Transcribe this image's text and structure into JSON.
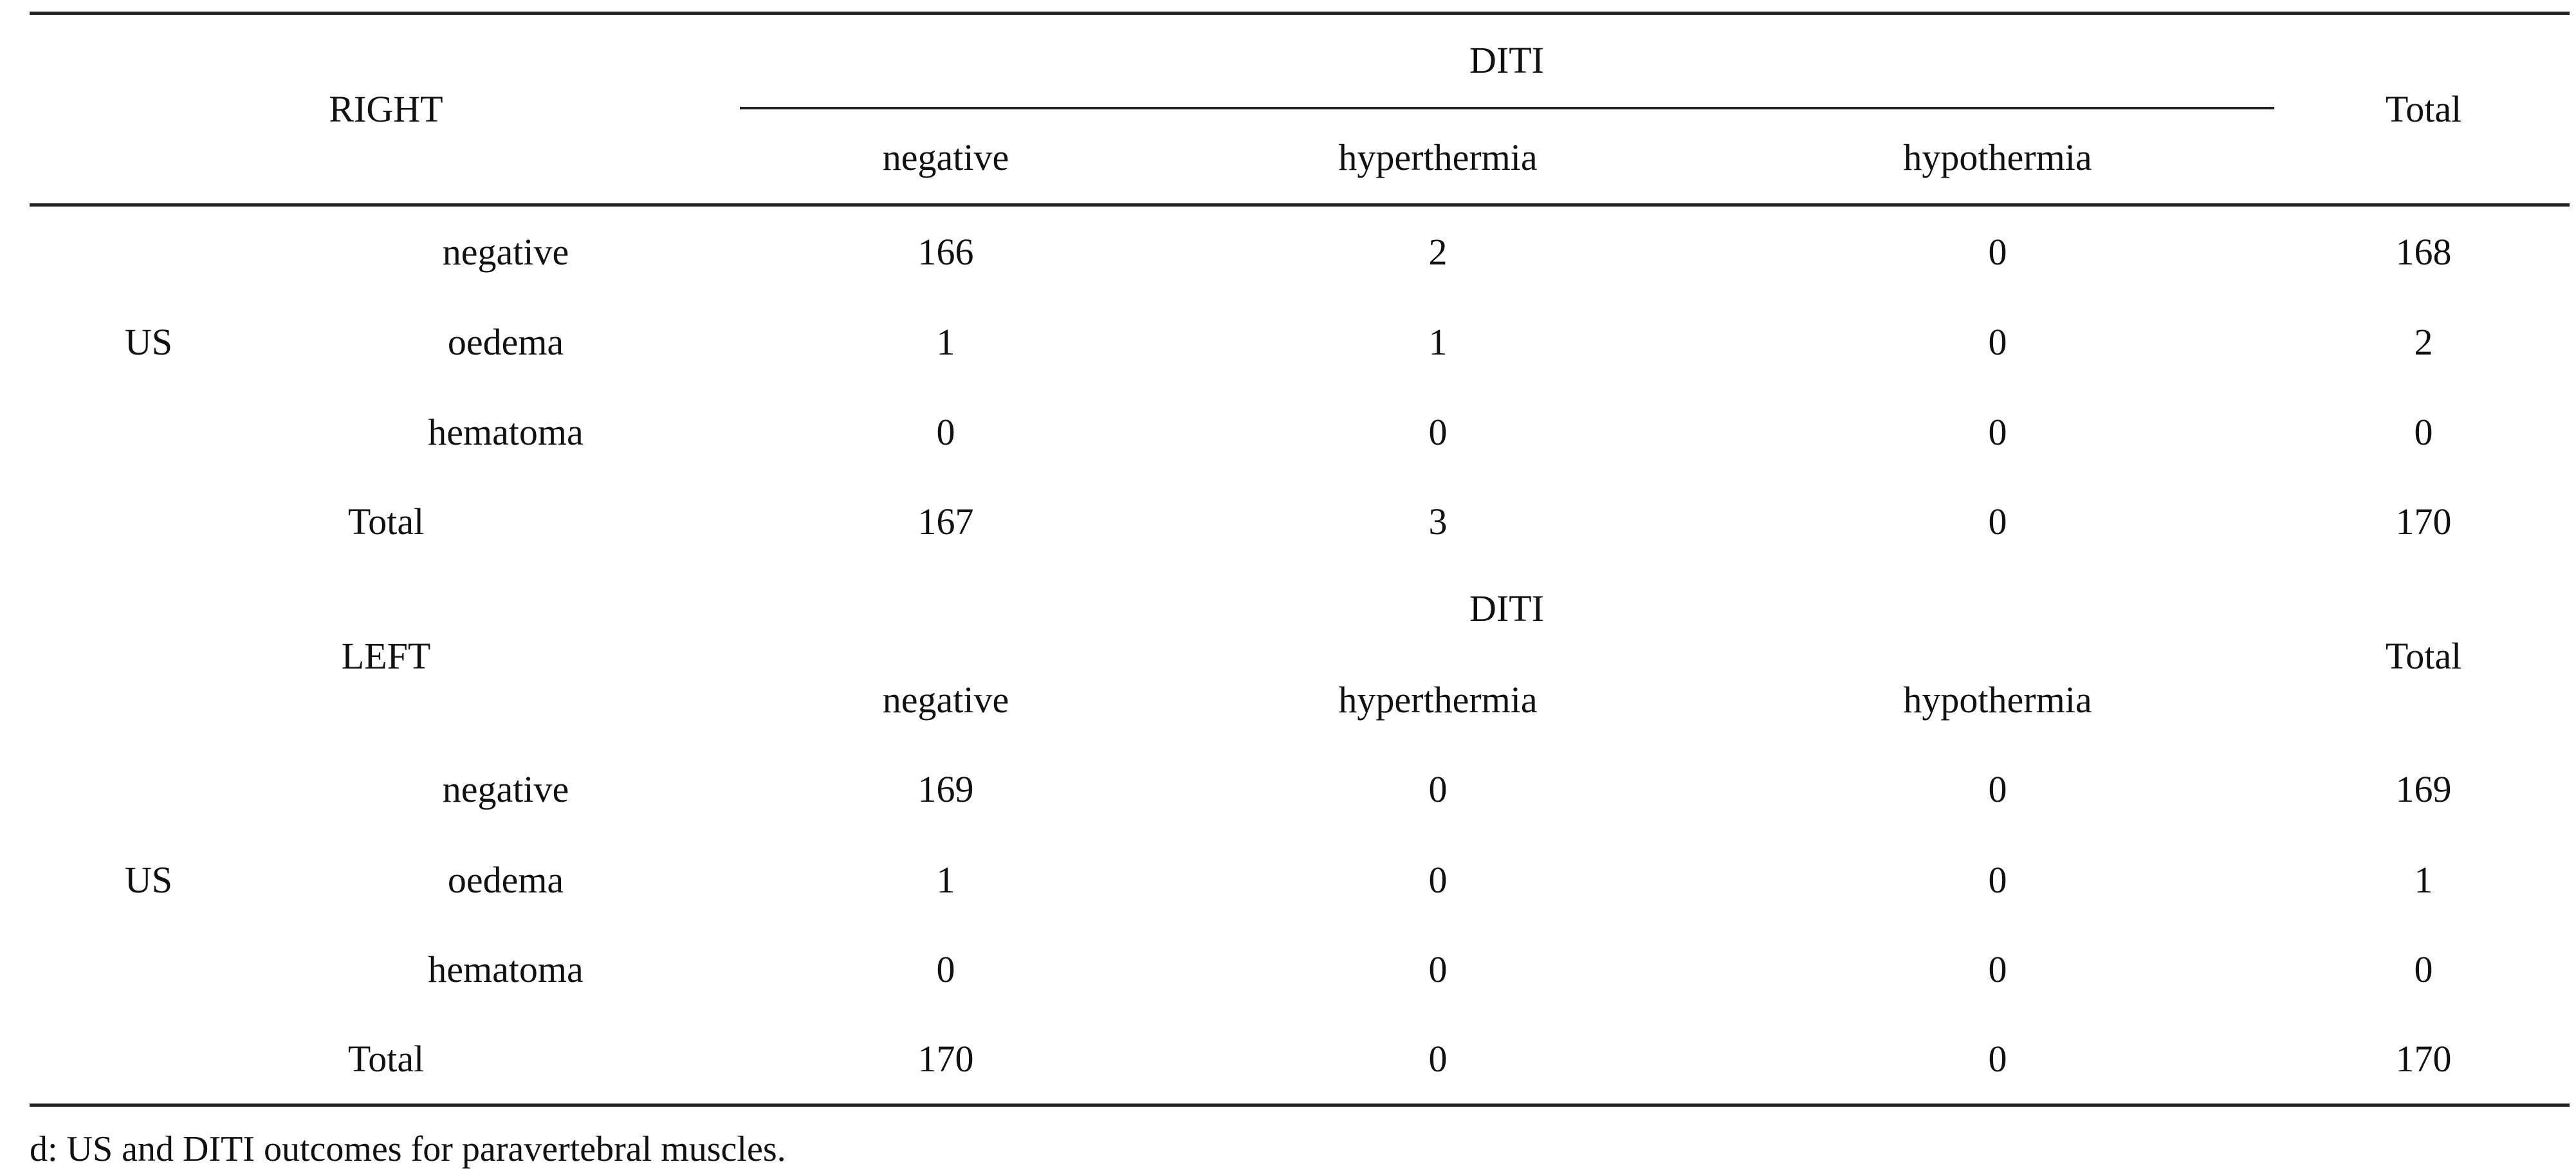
{
  "table": {
    "headers": {
      "diti": "DITI",
      "total": "Total",
      "columns": [
        "negative",
        "hyperthermia",
        "hypothermia"
      ]
    },
    "sections": [
      {
        "side": "RIGHT",
        "group_label": "US",
        "rows": [
          {
            "label": "negative",
            "values": [
              "166",
              "2",
              "0"
            ],
            "total": "168"
          },
          {
            "label": "oedema",
            "values": [
              "1",
              "1",
              "0"
            ],
            "total": "2"
          },
          {
            "label": "hematoma",
            "values": [
              "0",
              "0",
              "0"
            ],
            "total": "0"
          }
        ],
        "total_row": {
          "label": "Total",
          "values": [
            "167",
            "3",
            "0"
          ],
          "total": "170"
        }
      },
      {
        "side": "LEFT",
        "group_label": "US",
        "rows": [
          {
            "label": "negative",
            "values": [
              "169",
              "0",
              "0"
            ],
            "total": "169"
          },
          {
            "label": "oedema",
            "values": [
              "1",
              "0",
              "0"
            ],
            "total": "1"
          },
          {
            "label": "hematoma",
            "values": [
              "0",
              "0",
              "0"
            ],
            "total": "0"
          }
        ],
        "total_row": {
          "label": "Total",
          "values": [
            "170",
            "0",
            "0"
          ],
          "total": "170"
        }
      }
    ]
  },
  "caption": "d: US and DITI outcomes for paravertebral muscles."
}
